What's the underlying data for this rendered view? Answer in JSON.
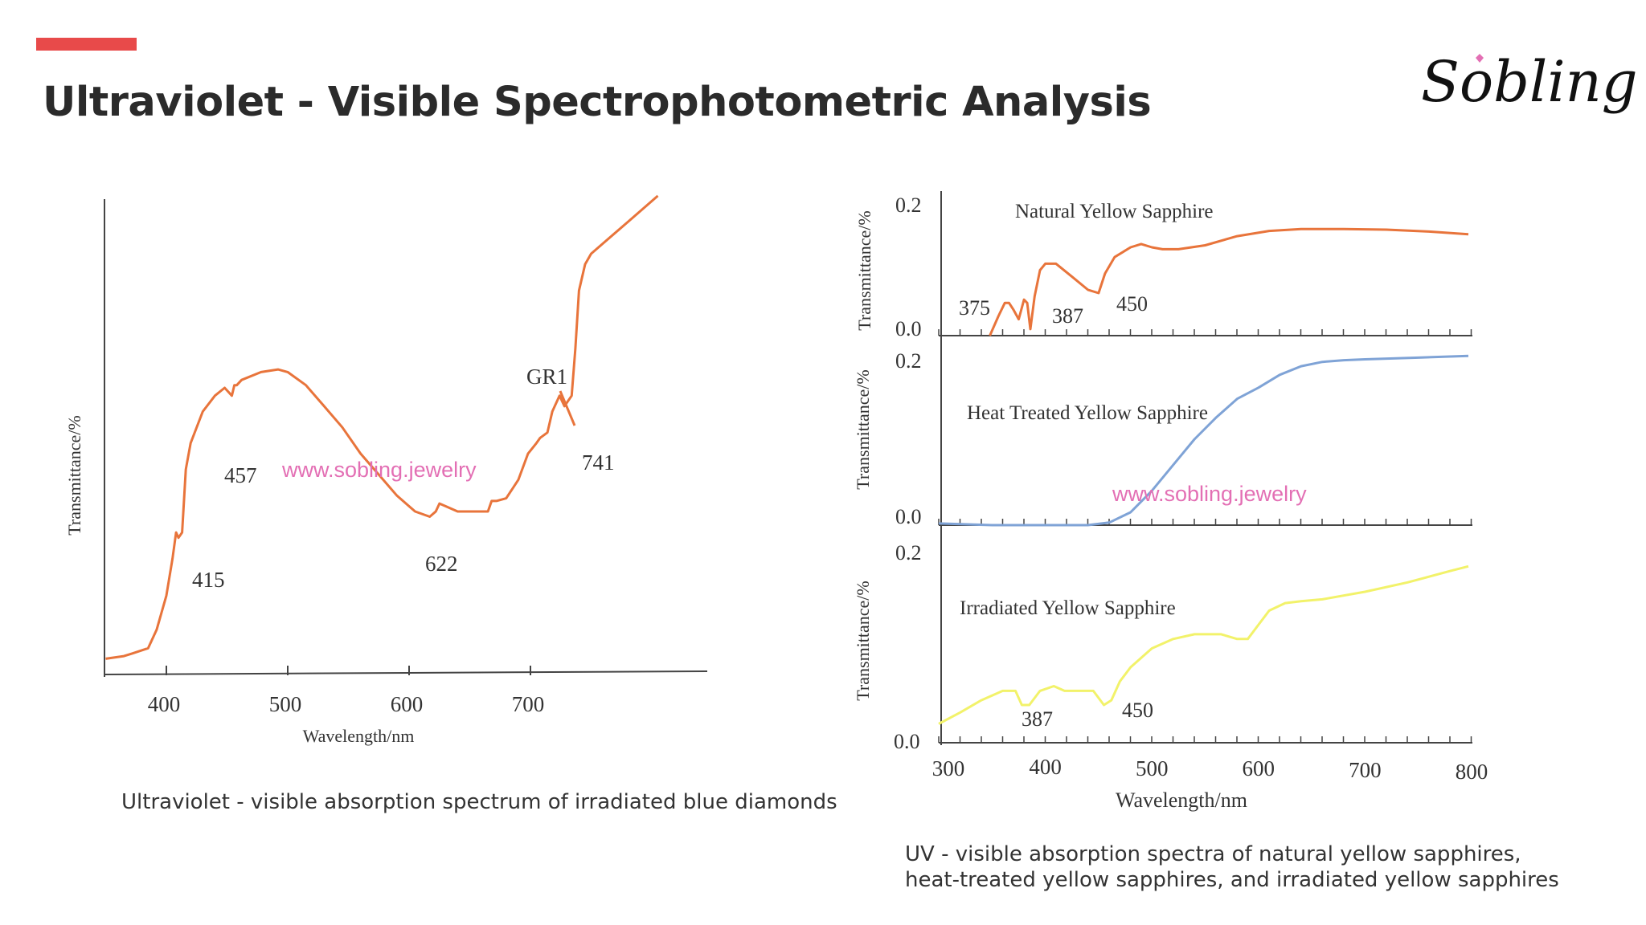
{
  "slide": {
    "title": "Ultraviolet - Visible Spectrophotometric Analysis",
    "accent_color": "#e84a4a",
    "logo_text": "Sobling",
    "watermark": "www.sobling.jewelry"
  },
  "chart_data": [
    {
      "type": "line",
      "ylabel": "Transmittance/%",
      "xlabel": "Wavelength/nm",
      "xticks": [
        "400",
        "500",
        "600",
        "700"
      ],
      "xlim": [
        350,
        850
      ],
      "ylim": [
        0,
        1
      ],
      "grid": false,
      "series": [
        {
          "color": "#e8743b",
          "x": [
            350,
            365,
            372,
            385,
            392,
            400,
            405,
            408,
            410,
            413,
            416,
            420,
            430,
            440,
            448,
            454,
            456,
            458,
            462,
            478,
            492,
            500,
            515,
            530,
            545,
            560,
            575,
            590,
            605,
            617,
            622,
            625,
            630,
            640,
            655,
            665,
            668,
            672,
            680,
            690,
            698,
            705,
            708,
            714,
            718,
            724,
            728,
            734,
            737,
            740,
            745,
            750,
            760,
            780,
            805
          ],
          "y": [
            0.03,
            0.035,
            0.04,
            0.05,
            0.085,
            0.15,
            0.22,
            0.27,
            0.26,
            0.27,
            0.39,
            0.44,
            0.5,
            0.53,
            0.545,
            0.53,
            0.55,
            0.55,
            0.56,
            0.575,
            0.58,
            0.575,
            0.55,
            0.51,
            0.47,
            0.42,
            0.38,
            0.34,
            0.31,
            0.3,
            0.31,
            0.325,
            0.32,
            0.31,
            0.31,
            0.31,
            0.33,
            0.33,
            0.335,
            0.37,
            0.42,
            0.44,
            0.45,
            0.46,
            0.5,
            0.53,
            0.51,
            0.53,
            0.62,
            0.73,
            0.78,
            0.8,
            0.82,
            0.86,
            0.91
          ]
        }
      ],
      "annotations": [
        "457",
        "415",
        "622",
        "GR1",
        "741"
      ]
    },
    {
      "type": "line",
      "title": "Natural Yellow Sapphire",
      "ylabel": "Transmittance/%",
      "yticks": [
        "0.2",
        "0.0"
      ],
      "xlim": [
        300,
        800
      ],
      "ylim": [
        0,
        0.2
      ],
      "grid": false,
      "series": [
        {
          "color": "#e8743b",
          "x": [
            348,
            356,
            362,
            366,
            370,
            375,
            380,
            383,
            386,
            390,
            395,
            400,
            410,
            425,
            440,
            450,
            456,
            465,
            480,
            490,
            500,
            510,
            525,
            550,
            580,
            610,
            640,
            680,
            720,
            760,
            797
          ],
          "y": [
            0.0,
            0.03,
            0.05,
            0.05,
            0.04,
            0.025,
            0.055,
            0.05,
            0.01,
            0.06,
            0.1,
            0.11,
            0.11,
            0.09,
            0.07,
            0.065,
            0.095,
            0.12,
            0.135,
            0.14,
            0.135,
            0.132,
            0.132,
            0.138,
            0.152,
            0.16,
            0.163,
            0.163,
            0.162,
            0.159,
            0.155
          ]
        }
      ],
      "annotations": [
        "375",
        "387",
        "450"
      ]
    },
    {
      "type": "line",
      "title": "Heat Treated Yellow Sapphire",
      "ylabel": "Transmittance/%",
      "yticks": [
        "0.2",
        "0.0"
      ],
      "xlim": [
        300,
        800
      ],
      "ylim": [
        0,
        0.2
      ],
      "grid": false,
      "series": [
        {
          "color": "#7fa3d6",
          "x": [
            300,
            350,
            400,
            440,
            460,
            480,
            500,
            520,
            540,
            560,
            580,
            600,
            620,
            640,
            660,
            680,
            700,
            750,
            797
          ],
          "y": [
            0.002,
            0.0,
            0.0,
            0.0,
            0.003,
            0.015,
            0.04,
            0.07,
            0.1,
            0.125,
            0.147,
            0.16,
            0.175,
            0.185,
            0.19,
            0.192,
            0.193,
            0.195,
            0.197
          ]
        }
      ]
    },
    {
      "type": "line",
      "title": "Irradiated Yellow Sapphire",
      "ylabel": "Transmittance/%",
      "xlabel": "Wavelength/nm",
      "yticks": [
        "0.2",
        "0.0"
      ],
      "xticks": [
        "300",
        "400",
        "500",
        "600",
        "700",
        "800"
      ],
      "xlim": [
        300,
        800
      ],
      "ylim": [
        0,
        0.2
      ],
      "grid": false,
      "series": [
        {
          "color": "#f2f26a",
          "x": [
            300,
            320,
            340,
            360,
            372,
            378,
            385,
            395,
            408,
            418,
            430,
            445,
            455,
            462,
            470,
            480,
            500,
            520,
            540,
            555,
            565,
            580,
            590,
            600,
            610,
            625,
            640,
            660,
            700,
            740,
            780,
            797
          ],
          "y": [
            0.02,
            0.032,
            0.045,
            0.055,
            0.055,
            0.04,
            0.04,
            0.055,
            0.06,
            0.055,
            0.055,
            0.055,
            0.04,
            0.045,
            0.065,
            0.08,
            0.1,
            0.11,
            0.115,
            0.115,
            0.115,
            0.11,
            0.11,
            0.125,
            0.14,
            0.148,
            0.15,
            0.152,
            0.16,
            0.17,
            0.182,
            0.187
          ]
        }
      ],
      "annotations": [
        "387",
        "450"
      ]
    }
  ],
  "captions": {
    "left": "Ultraviolet - visible absorption spectrum of irradiated blue diamonds",
    "right": "UV - visible absorption spectra of natural yellow sapphires, heat-treated yellow sapphires, and irradiated yellow sapphires"
  }
}
